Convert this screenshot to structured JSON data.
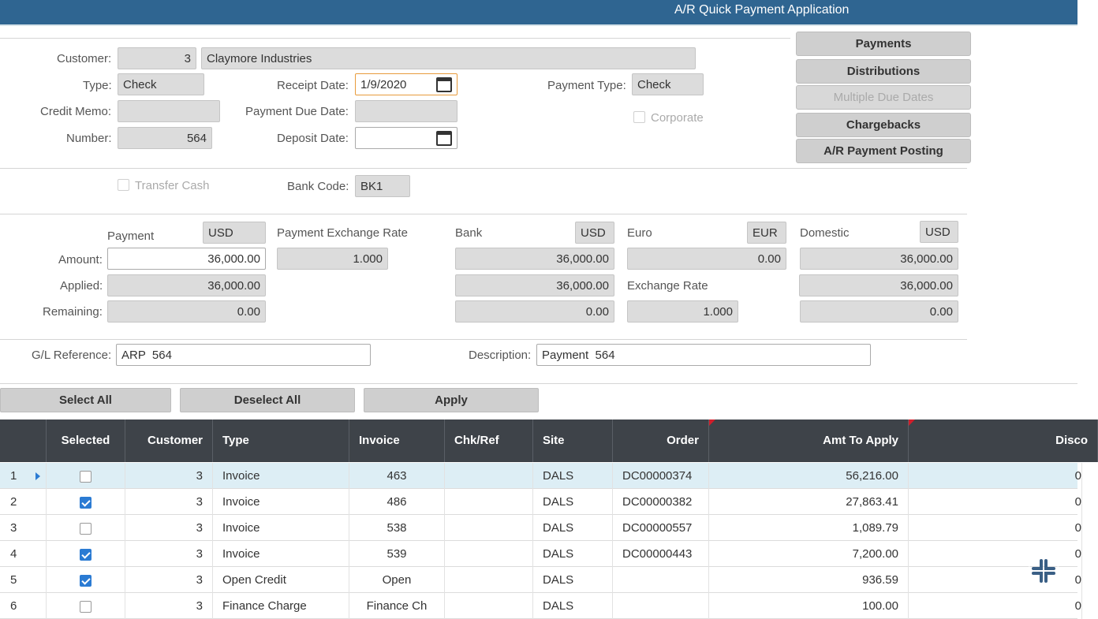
{
  "window": {
    "title": "A/R Quick Payment Application"
  },
  "form": {
    "customer_label": "Customer:",
    "customer_number": "3",
    "customer_name": "Claymore Industries",
    "type_label": "Type:",
    "type_value": "Check",
    "credit_memo_label": "Credit Memo:",
    "credit_memo_value": "",
    "number_label": "Number:",
    "number_value": "564",
    "receipt_date_label": "Receipt Date:",
    "receipt_date_value": "1/9/2020",
    "payment_due_date_label": "Payment Due Date:",
    "payment_due_date_value": "",
    "deposit_date_label": "Deposit Date:",
    "deposit_date_value": "",
    "payment_type_label": "Payment Type:",
    "payment_type_value": "Check",
    "corporate_label": "Corporate",
    "transfer_cash_label": "Transfer Cash",
    "bank_code_label": "Bank Code:",
    "bank_code_value": "BK1"
  },
  "side_buttons": {
    "payments": "Payments",
    "distributions": "Distributions",
    "multiple_due_dates": "Multiple Due Dates",
    "chargebacks": "Chargebacks",
    "posting": "A/R Payment Posting"
  },
  "amounts": {
    "payment_label": "Payment",
    "payment_currency": "USD",
    "exchange_rate_label": "Payment Exchange Rate",
    "bank_label": "Bank",
    "bank_currency": "USD",
    "euro_label": "Euro",
    "euro_currency": "EUR",
    "domestic_label": "Domestic",
    "domestic_currency": "USD",
    "amount_label": "Amount:",
    "applied_label": "Applied:",
    "remaining_label": "Remaining:",
    "payment_amount": "36,000.00",
    "payment_applied": "36,000.00",
    "payment_remaining": "0.00",
    "payment_exchange_rate": "1.000",
    "bank_amount": "36,000.00",
    "bank_applied": "36,000.00",
    "bank_remaining": "0.00",
    "euro_amount": "0.00",
    "euro_exchange_rate_label": "Exchange Rate",
    "euro_exchange_rate": "1.000",
    "domestic_amount": "36,000.00",
    "domestic_applied": "36,000.00",
    "domestic_remaining": "0.00"
  },
  "references": {
    "gl_label": "G/L Reference:",
    "gl_value": "ARP  564",
    "description_label": "Description:",
    "description_value": "Payment  564"
  },
  "actions": {
    "select_all": "Select All",
    "deselect_all": "Deselect All",
    "apply": "Apply"
  },
  "grid": {
    "columns": [
      "Selected",
      "Customer",
      "Type",
      "Invoice",
      "Chk/Ref",
      "Site",
      "Order",
      "Amt To Apply",
      "Disco"
    ],
    "rows": [
      {
        "num": "1",
        "selected": false,
        "customer": "3",
        "type": "Invoice",
        "invoice": "463",
        "chkref": "",
        "site": "DALS",
        "order": "DC00000374",
        "amt": "56,216.00",
        "disc": "0"
      },
      {
        "num": "2",
        "selected": true,
        "customer": "3",
        "type": "Invoice",
        "invoice": "486",
        "chkref": "",
        "site": "DALS",
        "order": "DC00000382",
        "amt": "27,863.41",
        "disc": "0"
      },
      {
        "num": "3",
        "selected": false,
        "customer": "3",
        "type": "Invoice",
        "invoice": "538",
        "chkref": "",
        "site": "DALS",
        "order": "DC00000557",
        "amt": "1,089.79",
        "disc": "0"
      },
      {
        "num": "4",
        "selected": true,
        "customer": "3",
        "type": "Invoice",
        "invoice": "539",
        "chkref": "",
        "site": "DALS",
        "order": "DC00000443",
        "amt": "7,200.00",
        "disc": "0"
      },
      {
        "num": "5",
        "selected": true,
        "customer": "3",
        "type": "Open Credit",
        "invoice": "Open",
        "chkref": "",
        "site": "DALS",
        "order": "",
        "amt": "936.59",
        "disc": "0"
      },
      {
        "num": "6",
        "selected": false,
        "customer": "3",
        "type": "Finance Charge",
        "invoice": "Finance Ch",
        "chkref": "",
        "site": "DALS",
        "order": "",
        "amt": "100.00",
        "disc": "0"
      }
    ]
  }
}
